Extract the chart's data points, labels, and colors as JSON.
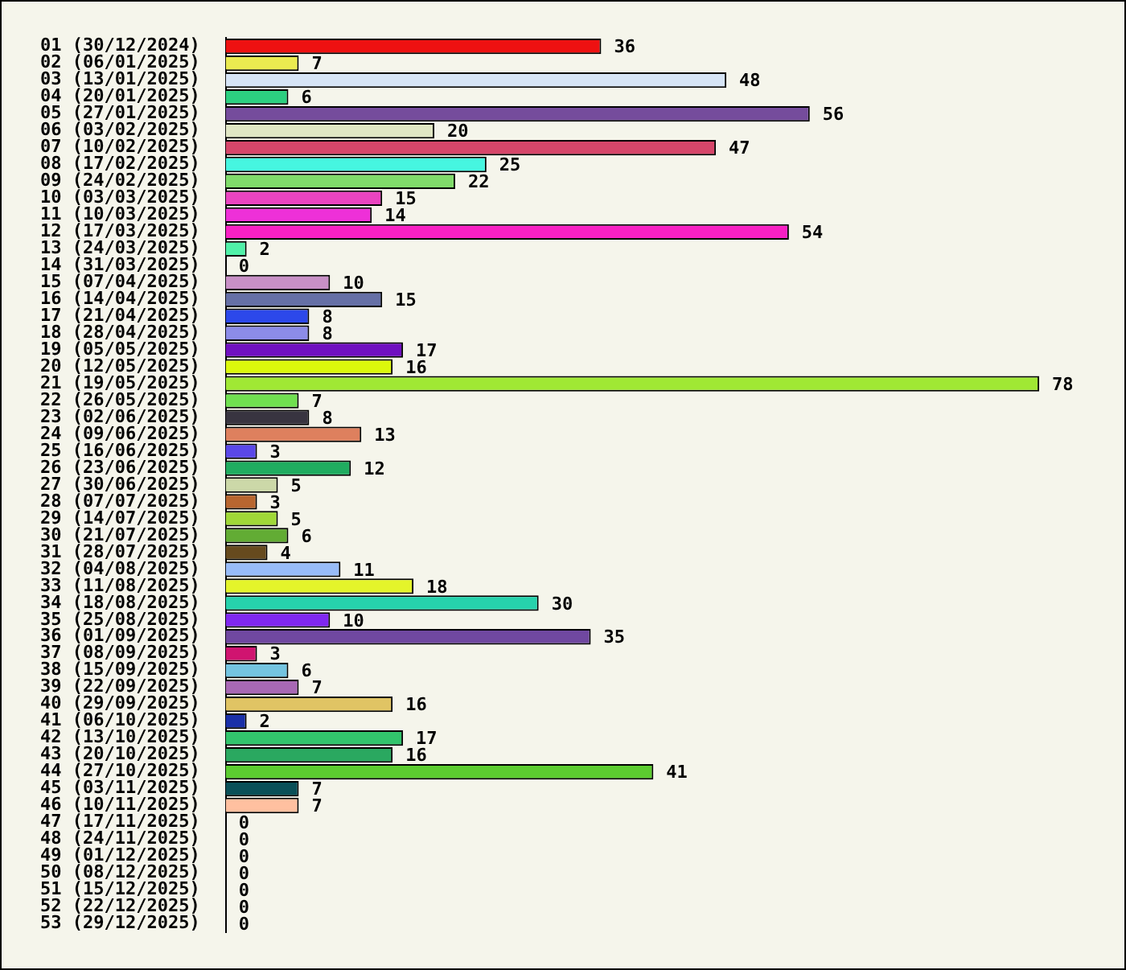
{
  "chart_data": {
    "type": "bar",
    "orientation": "horizontal",
    "data_labels": true,
    "grid": false,
    "legend": false,
    "categories": [
      "01 (30/12/2024)",
      "02 (06/01/2025)",
      "03 (13/01/2025)",
      "04 (20/01/2025)",
      "05 (27/01/2025)",
      "06 (03/02/2025)",
      "07 (10/02/2025)",
      "08 (17/02/2025)",
      "09 (24/02/2025)",
      "10 (03/03/2025)",
      "11 (10/03/2025)",
      "12 (17/03/2025)",
      "13 (24/03/2025)",
      "14 (31/03/2025)",
      "15 (07/04/2025)",
      "16 (14/04/2025)",
      "17 (21/04/2025)",
      "18 (28/04/2025)",
      "19 (05/05/2025)",
      "20 (12/05/2025)",
      "21 (19/05/2025)",
      "22 (26/05/2025)",
      "23 (02/06/2025)",
      "24 (09/06/2025)",
      "25 (16/06/2025)",
      "26 (23/06/2025)",
      "27 (30/06/2025)",
      "28 (07/07/2025)",
      "29 (14/07/2025)",
      "30 (21/07/2025)",
      "31 (28/07/2025)",
      "32 (04/08/2025)",
      "33 (11/08/2025)",
      "34 (18/08/2025)",
      "35 (25/08/2025)",
      "36 (01/09/2025)",
      "37 (08/09/2025)",
      "38 (15/09/2025)",
      "39 (22/09/2025)",
      "40 (29/09/2025)",
      "41 (06/10/2025)",
      "42 (13/10/2025)",
      "43 (20/10/2025)",
      "44 (27/10/2025)",
      "45 (03/11/2025)",
      "46 (10/11/2025)",
      "47 (17/11/2025)",
      "48 (24/11/2025)",
      "49 (01/12/2025)",
      "50 (08/12/2025)",
      "51 (15/12/2025)",
      "52 (22/12/2025)",
      "53 (29/12/2025)"
    ],
    "values": [
      36,
      7,
      48,
      6,
      56,
      20,
      47,
      25,
      22,
      15,
      14,
      54,
      2,
      0,
      10,
      15,
      8,
      8,
      17,
      16,
      78,
      7,
      8,
      13,
      3,
      12,
      5,
      3,
      5,
      6,
      4,
      11,
      18,
      30,
      10,
      35,
      3,
      6,
      7,
      16,
      2,
      17,
      16,
      41,
      7,
      7,
      0,
      0,
      0,
      0,
      0,
      0,
      0
    ],
    "colors": [
      "#ee1111",
      "#eaea50",
      "#d6e4f6",
      "#2ccf80",
      "#754c9c",
      "#e0e6c4",
      "#d6466a",
      "#46f6e0",
      "#80dc6a",
      "#ea44c0",
      "#ee30d8",
      "#f820c4",
      "#50f0a8",
      "#ffffff",
      "#c890c6",
      "#6670a6",
      "#2c48ea",
      "#8c8ce8",
      "#7010c0",
      "#dcf80c",
      "#a0e834",
      "#70e050",
      "#383440",
      "#de805e",
      "#5a48e8",
      "#20ac60",
      "#ccd8a8",
      "#b86630",
      "#a0d838",
      "#62ac34",
      "#664a1e",
      "#98bcf8",
      "#e4f42a",
      "#26d2ac",
      "#8028f0",
      "#7048a0",
      "#d01470",
      "#74c4e0",
      "#a868b4",
      "#e0c464",
      "#1a30a8",
      "#32c46c",
      "#2aa860",
      "#5ccc30",
      "#0a5058",
      "#ffc0a0",
      "#ffffff",
      "#ffffff",
      "#ffffff",
      "#ffffff",
      "#ffffff",
      "#ffffff",
      "#ffffff"
    ]
  }
}
